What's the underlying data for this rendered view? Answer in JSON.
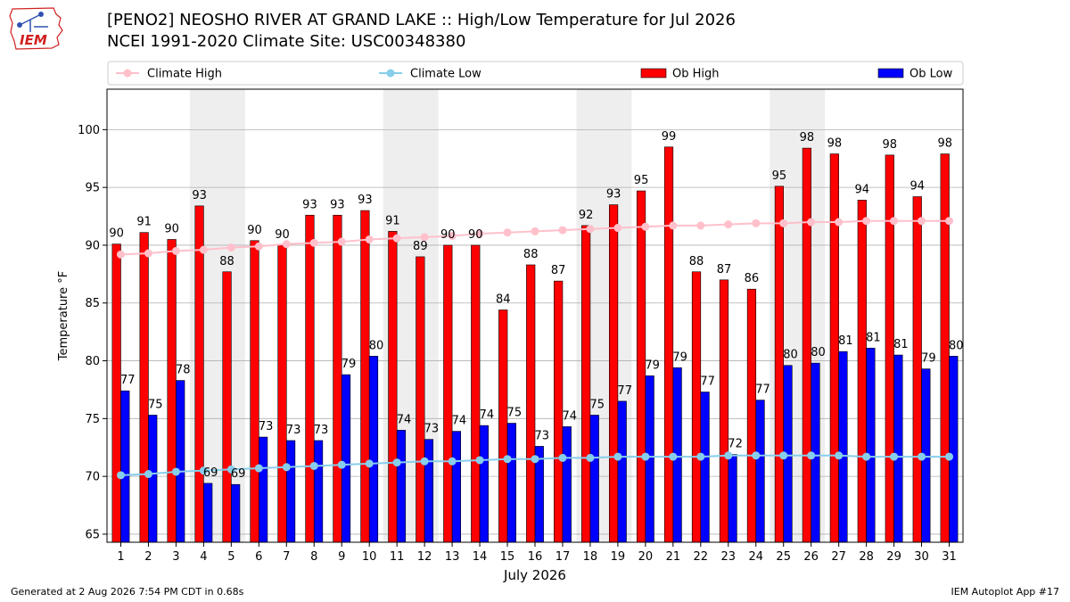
{
  "header": {
    "logo_text": "IEM",
    "title_line1": "[PENO2] NEOSHO RIVER  AT GRAND LAKE :: High/Low Temperature for Jul 2026",
    "title_line2": "NCEI 1991-2020 Climate Site: USC00348380"
  },
  "footer": {
    "generated": "Generated at 2 Aug 2026 7:54 PM CDT in 0.68s",
    "app": "IEM Autoplot App #17"
  },
  "colors": {
    "climate_high": "#ffc0cb",
    "climate_low": "#87ceeb",
    "ob_high": "#ff0000",
    "ob_low": "#0000ff",
    "weekend_shade": "#eeeeee",
    "grid": "#b0b0b0"
  },
  "chart_data": {
    "type": "bar",
    "xlabel": "July 2026",
    "ylabel": "Temperature °F",
    "ylim": [
      64.3,
      103.5
    ],
    "yticks": [
      65,
      70,
      75,
      80,
      85,
      90,
      95,
      100
    ],
    "grid": "horizontal",
    "legend_position": "top",
    "categories": [
      "1",
      "2",
      "3",
      "4",
      "5",
      "6",
      "7",
      "8",
      "9",
      "10",
      "11",
      "12",
      "13",
      "14",
      "15",
      "16",
      "17",
      "18",
      "19",
      "20",
      "21",
      "22",
      "23",
      "24",
      "25",
      "26",
      "27",
      "28",
      "29",
      "30",
      "31"
    ],
    "shaded_days": [
      4,
      5,
      11,
      12,
      18,
      19,
      25,
      26
    ],
    "series": [
      {
        "name": "Climate High",
        "kind": "line",
        "values": [
          89.2,
          89.3,
          89.5,
          89.6,
          89.8,
          89.9,
          90.1,
          90.2,
          90.3,
          90.5,
          90.6,
          90.7,
          90.8,
          91.0,
          91.1,
          91.2,
          91.3,
          91.4,
          91.5,
          91.6,
          91.7,
          91.7,
          91.8,
          91.9,
          91.9,
          92.0,
          92.0,
          92.1,
          92.1,
          92.1,
          92.1
        ]
      },
      {
        "name": "Climate Low",
        "kind": "line",
        "values": [
          70.1,
          70.2,
          70.4,
          70.5,
          70.6,
          70.7,
          70.8,
          70.9,
          71.0,
          71.1,
          71.2,
          71.3,
          71.3,
          71.4,
          71.5,
          71.5,
          71.6,
          71.6,
          71.7,
          71.7,
          71.7,
          71.7,
          71.8,
          71.8,
          71.8,
          71.8,
          71.8,
          71.7,
          71.7,
          71.7,
          71.7
        ]
      },
      {
        "name": "Ob High",
        "kind": "bar",
        "values": [
          90.1,
          91.1,
          90.5,
          93.4,
          87.7,
          90.4,
          90.0,
          92.6,
          92.6,
          93.0,
          91.2,
          89.0,
          90.0,
          90.0,
          84.4,
          88.3,
          86.9,
          91.7,
          93.5,
          94.7,
          98.5,
          87.7,
          87.0,
          86.2,
          95.1,
          98.4,
          97.9,
          93.9,
          97.8,
          94.2,
          97.9
        ],
        "labels": [
          "90",
          "91",
          "90",
          "93",
          "88",
          "90",
          "90",
          "93",
          "93",
          "93",
          "91",
          "89",
          "90",
          "90",
          "84",
          "88",
          "87",
          "92",
          "93",
          "95",
          "99",
          "88",
          "87",
          "86",
          "95",
          "98",
          "98",
          "94",
          "98",
          "94",
          "98"
        ]
      },
      {
        "name": "Ob Low",
        "kind": "bar",
        "values": [
          77.4,
          75.3,
          78.3,
          69.4,
          69.3,
          73.4,
          73.1,
          73.1,
          78.8,
          80.4,
          74.0,
          73.2,
          73.9,
          74.4,
          74.6,
          72.6,
          74.3,
          75.3,
          76.5,
          78.7,
          79.4,
          77.3,
          71.9,
          76.6,
          79.6,
          79.8,
          80.8,
          81.1,
          80.5,
          79.3,
          80.4
        ],
        "labels": [
          "77",
          "75",
          "78",
          "69",
          "69",
          "73",
          "73",
          "73",
          "79",
          "80",
          "74",
          "73",
          "74",
          "74",
          "75",
          "73",
          "74",
          "75",
          "77",
          "79",
          "79",
          "77",
          "72",
          "77",
          "80",
          "80",
          "81",
          "81",
          "81",
          "79",
          "80"
        ]
      }
    ]
  }
}
